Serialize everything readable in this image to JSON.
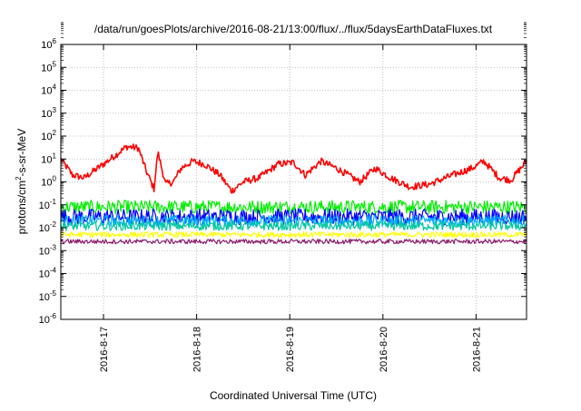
{
  "chart_data": {
    "type": "line",
    "title": "/data/run/goesPlots/archive/2016-08-21/13:00/flux/../flux/5daysEarthDataFluxes.txt",
    "xlabel": "Coordinated Universal Time (UTC)",
    "ylabel_parts": [
      "protons/cm",
      "2",
      "-s-sr-MeV"
    ],
    "yscale": "log",
    "ylim": [
      1e-06,
      1000000.0
    ],
    "xlim": [
      "2016-08-16 13:00",
      "2016-08-21 13:00"
    ],
    "x_ticks": [
      "2016-8-17",
      "2016-8-18",
      "2016-8-19",
      "2016-8-20",
      "2016-8-21"
    ],
    "y_ticks": [
      {
        "base": "10",
        "exp": "6"
      },
      {
        "base": "10",
        "exp": "5"
      },
      {
        "base": "10",
        "exp": "4"
      },
      {
        "base": "10",
        "exp": "3"
      },
      {
        "base": "10",
        "exp": "2"
      },
      {
        "base": "10",
        "exp": "1"
      },
      {
        "base": "10",
        "exp": "0"
      },
      {
        "base": "10",
        "exp": "-1"
      },
      {
        "base": "10",
        "exp": "-2"
      },
      {
        "base": "10",
        "exp": "-3"
      },
      {
        "base": "10",
        "exp": "-4"
      },
      {
        "base": "10",
        "exp": "-5"
      },
      {
        "base": "10",
        "exp": "-6"
      }
    ],
    "grid": true,
    "series": [
      {
        "color": "#ff0000",
        "noise": 0.15,
        "x": [
          "2016-08-16 13:00",
          "2016-08-16 16:00",
          "2016-08-16 19:00",
          "2016-08-17 01:00",
          "2016-08-17 06:00",
          "2016-08-17 09:00",
          "2016-08-17 11:00",
          "2016-08-17 13:00",
          "2016-08-17 14:00",
          "2016-08-17 16:00",
          "2016-08-17 18:00",
          "2016-08-17 20:00",
          "2016-08-17 23:00",
          "2016-08-18 02:00",
          "2016-08-18 06:00",
          "2016-08-18 09:00",
          "2016-08-18 12:00",
          "2016-08-18 16:00",
          "2016-08-18 21:00",
          "2016-08-19 01:00",
          "2016-08-19 04:00",
          "2016-08-19 08:00",
          "2016-08-19 12:00",
          "2016-08-19 18:00",
          "2016-08-19 22:00",
          "2016-08-20 02:00",
          "2016-08-20 07:00",
          "2016-08-20 12:00",
          "2016-08-20 18:00",
          "2016-08-20 23:00",
          "2016-08-21 02:00",
          "2016-08-21 06:00",
          "2016-08-21 09:00",
          "2016-08-21 13:00"
        ],
        "y": [
          10,
          2,
          1.5,
          8,
          35,
          30,
          3,
          0.5,
          20,
          0.8,
          1,
          4,
          8,
          6,
          2,
          0.4,
          1,
          1.5,
          6,
          7,
          2,
          8,
          4,
          1,
          4,
          1.5,
          0.6,
          0.8,
          2,
          4,
          8,
          1.5,
          1.2,
          8
        ]
      },
      {
        "color": "#00ee00",
        "noise": 0.3,
        "x": [
          "2016-08-16 13:00",
          "2016-08-21 13:00"
        ],
        "y": [
          0.08,
          0.08
        ]
      },
      {
        "color": "#0000ff",
        "noise": 0.35,
        "x": [
          "2016-08-16 13:00",
          "2016-08-21 13:00"
        ],
        "y": [
          0.03,
          0.03
        ]
      },
      {
        "color": "#00aaff",
        "noise": 0.25,
        "x": [
          "2016-08-16 13:00",
          "2016-08-21 13:00"
        ],
        "y": [
          0.02,
          0.02
        ]
      },
      {
        "color": "#00c8a0",
        "noise": 0.2,
        "x": [
          "2016-08-16 13:00",
          "2016-08-21 13:00"
        ],
        "y": [
          0.012,
          0.012
        ]
      },
      {
        "color": "#ffff00",
        "noise": 0.12,
        "x": [
          "2016-08-16 13:00",
          "2016-08-21 13:00"
        ],
        "y": [
          0.005,
          0.005
        ]
      },
      {
        "color": "#8b1a6b",
        "noise": 0.1,
        "x": [
          "2016-08-16 13:00",
          "2016-08-21 13:00"
        ],
        "y": [
          0.0025,
          0.0025
        ]
      }
    ]
  }
}
